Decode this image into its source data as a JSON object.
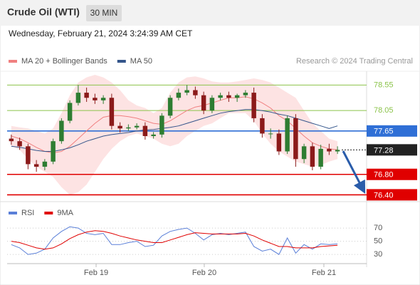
{
  "header": {
    "title": "Crude Oil (WTI)",
    "badge": "30 MIN",
    "date": "Wednesday, February 21, 2024 3:24:39 AM CET"
  },
  "chart_data": [
    {
      "type": "candlestick",
      "source": "Research © 2024 Trading Central",
      "up_color": "#2e7d32",
      "down_color": "#8b1a1a",
      "xlim": [
        -0.5,
        39.5
      ],
      "ylim": [
        76.28,
        78.82
      ],
      "open": [
        77.5,
        77.45,
        77.35,
        77.0,
        76.95,
        77.05,
        77.45,
        77.85,
        78.2,
        78.4,
        78.3,
        78.25,
        78.3,
        77.75,
        77.7,
        77.72,
        77.75,
        77.55,
        77.58,
        77.95,
        78.3,
        78.4,
        78.45,
        78.35,
        78.05,
        78.3,
        78.35,
        78.3,
        78.35,
        78.4,
        77.9,
        77.6,
        77.6,
        77.25,
        77.9,
        77.1,
        77.35,
        76.95,
        77.3,
        77.25
      ],
      "high": [
        77.58,
        77.52,
        77.4,
        77.08,
        77.1,
        77.5,
        77.9,
        78.25,
        78.55,
        78.5,
        78.38,
        78.35,
        78.38,
        77.82,
        77.78,
        77.8,
        77.82,
        77.63,
        78.0,
        78.35,
        78.48,
        78.55,
        78.52,
        78.42,
        78.35,
        78.4,
        78.42,
        78.38,
        78.45,
        78.5,
        77.98,
        77.7,
        77.68,
        77.95,
        77.98,
        77.4,
        77.42,
        77.38,
        77.4,
        77.35
      ],
      "low": [
        77.38,
        77.28,
        76.9,
        76.85,
        76.88,
        77.0,
        77.4,
        77.8,
        78.15,
        78.22,
        78.18,
        78.18,
        77.68,
        77.62,
        77.65,
        77.68,
        77.48,
        77.5,
        77.52,
        77.9,
        78.25,
        78.35,
        78.28,
        77.98,
        78.0,
        78.25,
        78.22,
        78.22,
        78.3,
        77.82,
        77.52,
        77.5,
        77.18,
        77.2,
        76.95,
        77.02,
        76.88,
        76.9,
        77.18,
        77.2
      ],
      "close": [
        77.45,
        77.35,
        77.0,
        76.95,
        77.05,
        77.45,
        77.85,
        78.2,
        78.4,
        78.3,
        78.25,
        78.3,
        77.75,
        77.7,
        77.72,
        77.75,
        77.55,
        77.58,
        77.95,
        78.3,
        78.4,
        78.45,
        78.35,
        78.05,
        78.3,
        78.35,
        78.3,
        78.35,
        78.4,
        77.9,
        77.6,
        77.6,
        77.25,
        77.9,
        77.1,
        77.35,
        76.95,
        77.3,
        77.25,
        77.28
      ],
      "series": [
        {
          "name": "MA 20 + Bollinger Bands",
          "color": "#f08080",
          "band_color": "#fde3e3",
          "values": [
            77.55,
            77.5,
            77.42,
            77.33,
            77.25,
            77.22,
            77.25,
            77.35,
            77.5,
            77.65,
            77.8,
            77.92,
            77.95,
            77.95,
            77.93,
            77.9,
            77.85,
            77.8,
            77.78,
            77.85,
            77.95,
            78.05,
            78.12,
            78.15,
            78.2,
            78.25,
            78.3,
            78.3,
            78.32,
            78.28,
            78.2,
            78.1,
            77.95,
            77.85,
            77.7,
            77.55,
            77.42,
            77.35,
            77.3,
            77.28
          ],
          "upper": [
            77.75,
            77.72,
            77.7,
            77.65,
            77.6,
            77.7,
            78.0,
            78.35,
            78.6,
            78.7,
            78.75,
            78.7,
            78.6,
            78.45,
            78.25,
            78.15,
            78.1,
            78.0,
            78.1,
            78.4,
            78.6,
            78.7,
            78.72,
            78.68,
            78.62,
            78.6,
            78.6,
            78.62,
            78.65,
            78.68,
            78.65,
            78.6,
            78.5,
            78.4,
            78.3,
            78.05,
            77.8,
            77.65,
            77.5,
            77.45
          ],
          "lower": [
            77.35,
            77.28,
            77.1,
            76.95,
            76.85,
            76.75,
            76.55,
            76.4,
            76.45,
            76.6,
            76.85,
            77.1,
            77.3,
            77.45,
            77.55,
            77.6,
            77.55,
            77.5,
            77.4,
            77.35,
            77.4,
            77.55,
            77.65,
            77.75,
            77.8,
            77.9,
            78.0,
            78.0,
            78.0,
            77.85,
            77.6,
            77.4,
            77.25,
            77.15,
            77.05,
            77.0,
            76.95,
            76.98,
            77.05,
            77.1
          ]
        },
        {
          "name": "MA 50",
          "color": "#34558b",
          "values": [
            77.35,
            77.33,
            77.3,
            77.27,
            77.25,
            77.25,
            77.28,
            77.32,
            77.38,
            77.45,
            77.5,
            77.55,
            77.58,
            77.6,
            77.62,
            77.65,
            77.67,
            77.68,
            77.7,
            77.72,
            77.75,
            77.8,
            77.85,
            77.9,
            77.95,
            78.0,
            78.03,
            78.05,
            78.07,
            78.07,
            78.05,
            78.02,
            77.98,
            77.95,
            77.9,
            77.85,
            77.8,
            77.75,
            77.7,
            77.75
          ]
        }
      ],
      "levels": [
        {
          "value": 78.55,
          "color": "#8bc34a",
          "boxed": false
        },
        {
          "value": 78.05,
          "color": "#8bc34a",
          "boxed": false
        },
        {
          "value": 77.65,
          "color": "#2f6fd6",
          "boxed": true
        },
        {
          "value": 77.28,
          "color": "#222222",
          "boxed": true,
          "dotted": true
        },
        {
          "value": 76.8,
          "label": "76.80",
          "color": "#e00000",
          "boxed": true
        },
        {
          "value": 76.4,
          "label": "76.40",
          "color": "#e00000",
          "boxed": true
        }
      ]
    },
    {
      "type": "line",
      "xlim": [
        -0.5,
        39.5
      ],
      "ylim": [
        15,
        95
      ],
      "yticks": [
        70,
        50,
        30
      ],
      "xticks": [
        {
          "value": 10.14,
          "label": "Feb 19"
        },
        {
          "value": 23.07,
          "label": "Feb 20"
        },
        {
          "value": 37.37,
          "label": "Feb 21"
        }
      ],
      "series": [
        {
          "name": "RSI",
          "color": "#5a7fd8",
          "values": [
            45,
            40,
            30,
            32,
            38,
            55,
            65,
            72,
            70,
            62,
            60,
            62,
            45,
            45,
            48,
            50,
            42,
            44,
            58,
            65,
            68,
            70,
            62,
            52,
            60,
            62,
            60,
            62,
            64,
            42,
            35,
            38,
            30,
            55,
            32,
            45,
            38,
            46,
            45,
            46
          ]
        },
        {
          "name": "9MA",
          "color": "#e00000",
          "values": [
            50,
            48,
            44,
            40,
            38,
            40,
            46,
            54,
            60,
            64,
            66,
            65,
            62,
            58,
            55,
            52,
            50,
            48,
            48,
            52,
            56,
            60,
            63,
            62,
            61,
            61,
            61,
            61,
            62,
            58,
            52,
            47,
            42,
            42,
            40,
            40,
            40,
            42,
            43,
            44
          ]
        }
      ]
    }
  ]
}
